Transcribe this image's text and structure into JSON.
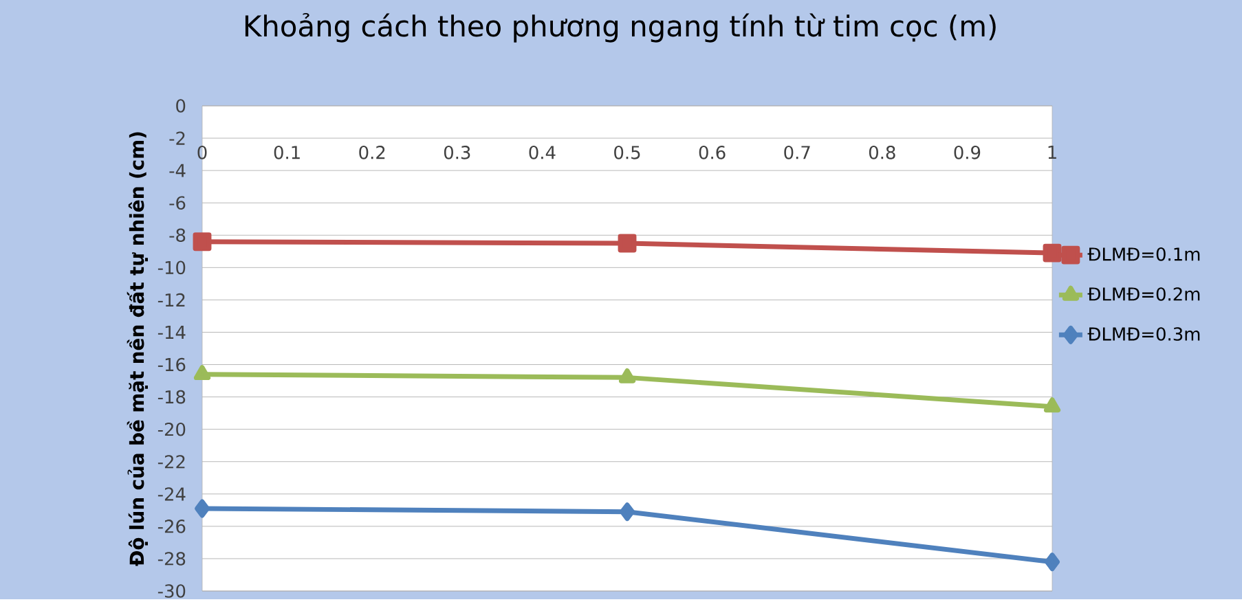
{
  "chart_data": {
    "type": "line",
    "title": "Khoảng cách theo phương ngang tính từ tim cọc (m)",
    "ylabel": "Độ lún của bề mặt nền đất tự nhiên (cm)",
    "x": [
      0,
      0.5,
      1
    ],
    "series": [
      {
        "name": "ĐLMĐ=0.1m",
        "color": "#c0504d",
        "marker": "square",
        "values": [
          -8.4,
          -8.5,
          -9.1
        ]
      },
      {
        "name": "ĐLMĐ=0.2m",
        "color": "#9bbb59",
        "marker": "triangle",
        "values": [
          -16.6,
          -16.8,
          -18.6
        ]
      },
      {
        "name": "ĐLMĐ=0.3m",
        "color": "#4f81bd",
        "marker": "diamond",
        "values": [
          -24.9,
          -25.1,
          -28.2
        ]
      }
    ],
    "xlim": [
      0,
      1
    ],
    "xticks": [
      0,
      0.1,
      0.2,
      0.3,
      0.4,
      0.5,
      0.6,
      0.7,
      0.8,
      0.9,
      1
    ],
    "ylim": [
      -30,
      0
    ],
    "yticks": [
      -30,
      -28,
      -26,
      -24,
      -22,
      -20,
      -18,
      -16,
      -14,
      -12,
      -10,
      -8,
      -6,
      -4,
      -2,
      0
    ],
    "grid": "y",
    "legend": "right",
    "line_style": "solid"
  }
}
